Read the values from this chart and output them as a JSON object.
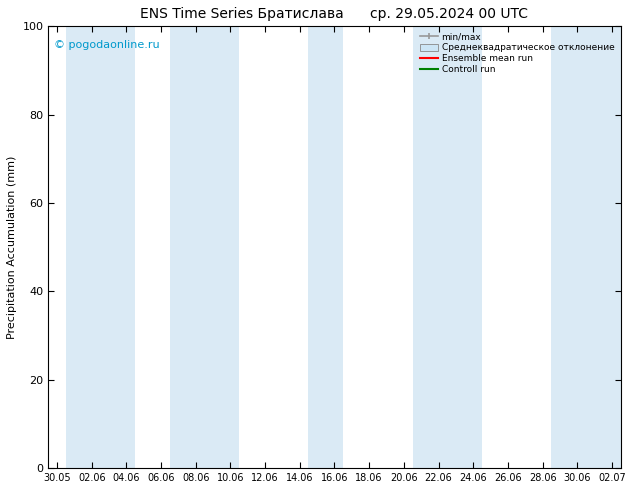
{
  "title_left": "ENS Time Series Братислава",
  "title_right": "ср. 29.05.2024 00 UTC",
  "ylabel": "Precipitation Accumulation (mm)",
  "watermark": "© pogodaonline.ru",
  "watermark_color": "#0099cc",
  "ylim": [
    0,
    100
  ],
  "yticks": [
    0,
    20,
    40,
    60,
    80,
    100
  ],
  "background_color": "#ffffff",
  "plot_bg_color": "#ffffff",
  "legend_entries": [
    "min/max",
    "Среднеквадратическое отклонение",
    "Ensemble mean run",
    "Controll run"
  ],
  "shade_color": "#daeaf5",
  "xtick_labels": [
    "30.05",
    "02.06",
    "04.06",
    "06.06",
    "08.06",
    "10.06",
    "12.06",
    "14.06",
    "16.06",
    "18.06",
    "20.06",
    "22.06",
    "24.06",
    "26.06",
    "28.06",
    "30.06",
    "02.07"
  ],
  "xtick_positions": [
    0,
    2,
    4,
    6,
    8,
    10,
    12,
    14,
    16,
    18,
    20,
    22,
    24,
    26,
    28,
    30,
    32
  ],
  "xlim": [
    -0.5,
    32.5
  ],
  "shade_bands": [
    [
      0.5,
      2.5
    ],
    [
      2.5,
      4.5
    ],
    [
      6.5,
      8.5
    ],
    [
      8.5,
      10.5
    ],
    [
      14.5,
      16.5
    ],
    [
      20.5,
      22.5
    ],
    [
      22.5,
      24.5
    ],
    [
      28.5,
      30.5
    ],
    [
      30.5,
      32.5
    ]
  ]
}
